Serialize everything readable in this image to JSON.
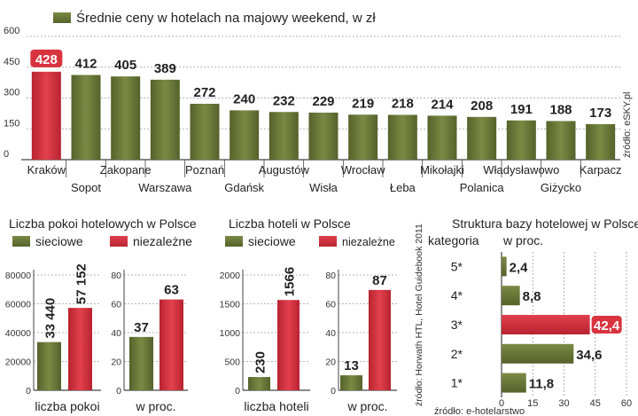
{
  "colors": {
    "green": "#6b7a3a",
    "green_dark": "#55622b",
    "red": "#d8333f",
    "red_dark": "#b82330",
    "axis": "#444444",
    "grid": "#9a9a9a"
  },
  "chart_data": [
    {
      "type": "bar",
      "title": "Średnie ceny w hotelach na majowy weekend, w zł",
      "source": "źródło: eSKY.pl",
      "categories": [
        "Kraków",
        "Sopot",
        "Zakopane",
        "Warszawa",
        "Poznań",
        "Gdańsk",
        "Augustów",
        "Wisła",
        "Wrocław",
        "Łeba",
        "Mikołajki",
        "Polanica",
        "Władysławowo",
        "Giżycko",
        "Karpacz"
      ],
      "values": [
        428,
        412,
        405,
        389,
        272,
        240,
        232,
        229,
        219,
        218,
        214,
        208,
        191,
        188,
        173
      ],
      "value_labels": [
        "428",
        "412",
        "405",
        "389",
        "272",
        "240",
        "232",
        "229",
        "219",
        "218",
        "214",
        "208",
        "191",
        "188",
        "173"
      ],
      "highlight_index": 0,
      "ylim": [
        0,
        600
      ],
      "yticks": [
        "0",
        "150",
        "300",
        "450",
        "600"
      ],
      "grid": true
    },
    {
      "type": "bar",
      "title": "Liczba pokoi hotelowych w Polsce",
      "legend": [
        "sieciowe",
        "niezależne"
      ],
      "panels": [
        {
          "xlabel": "liczba pokoi",
          "values": [
            33440,
            57152
          ],
          "value_labels": [
            "33 440",
            "57 152"
          ],
          "ylim": [
            0,
            80000
          ],
          "yticks": [
            "0",
            "20000",
            "40000",
            "60000",
            "80000"
          ]
        },
        {
          "xlabel": "w proc.",
          "values": [
            37,
            63
          ],
          "value_labels": [
            "37",
            "63"
          ],
          "ylim": [
            0,
            80
          ],
          "yticks": [
            "0",
            "20",
            "40",
            "60",
            "80"
          ]
        }
      ]
    },
    {
      "type": "bar",
      "title": "Liczba hoteli w Polsce",
      "legend": [
        "sieciowe",
        "niezależne"
      ],
      "source": "źródło: Horwath HTL, Hotel Guidebook 2011",
      "panels": [
        {
          "xlabel": "liczba hoteli",
          "values": [
            230,
            1566
          ],
          "value_labels": [
            "230",
            "1566"
          ],
          "ylim": [
            0,
            2000
          ],
          "yticks": [
            "0",
            "500",
            "1000",
            "1500",
            "2000"
          ]
        },
        {
          "xlabel": "w proc.",
          "values": [
            13,
            87
          ],
          "value_labels": [
            "13",
            "87"
          ],
          "ylim": [
            0,
            100
          ],
          "yticks": [
            "0",
            "20",
            "40",
            "60",
            "80"
          ]
        }
      ]
    },
    {
      "type": "bar",
      "orientation": "horizontal",
      "title": "Struktura bazy hotelowej w Polsce",
      "subtitle": "w proc.",
      "category_header": "kategoria",
      "categories": [
        "5*",
        "4*",
        "3*",
        "2*",
        "1*"
      ],
      "values": [
        2.4,
        8.8,
        42.4,
        34.6,
        11.8
      ],
      "value_labels": [
        "2,4",
        "8,8",
        "42,4",
        "34,6",
        "11,8"
      ],
      "highlight_index": 2,
      "xlim": [
        0,
        60
      ],
      "xticks": [
        "0",
        "15",
        "30",
        "45",
        "60"
      ],
      "source": "źródło: e-hotelarstwo"
    }
  ]
}
